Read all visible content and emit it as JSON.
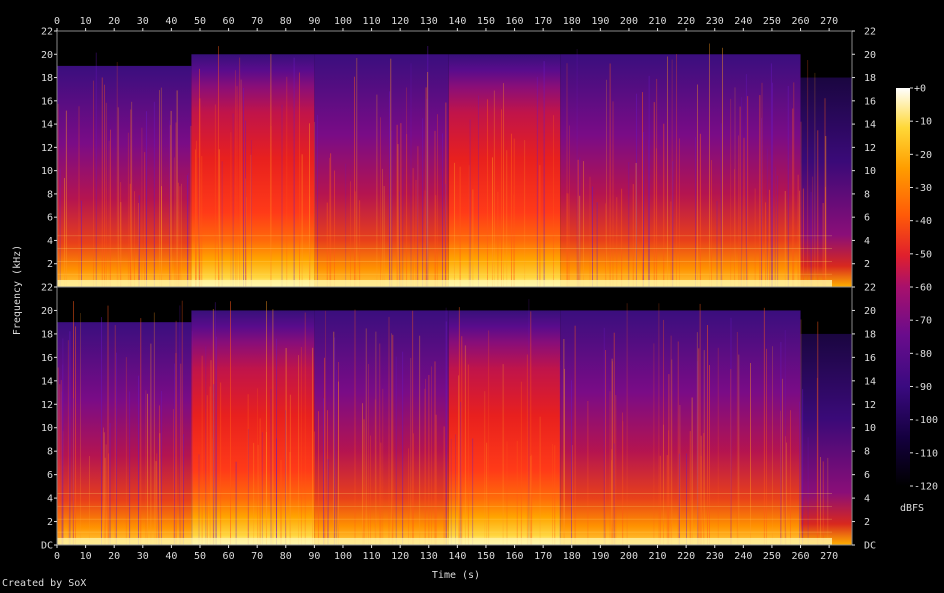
{
  "chart_data": {
    "type": "heatmap",
    "subtype": "spectrogram",
    "channels": 2,
    "xlabel": "Time (s)",
    "ylabel": "Frequency (kHz)",
    "xlim": [
      0,
      278
    ],
    "x_ticks": [
      0,
      10,
      20,
      30,
      40,
      50,
      60,
      70,
      80,
      90,
      100,
      110,
      120,
      130,
      140,
      150,
      160,
      170,
      180,
      190,
      200,
      210,
      220,
      230,
      240,
      250,
      260,
      270
    ],
    "y_ticks_top": [
      "2",
      "4",
      "6",
      "8",
      "10",
      "12",
      "14",
      "16",
      "18",
      "20",
      "22"
    ],
    "y_ticks_bottom": [
      "DC",
      "2",
      "4",
      "6",
      "8",
      "10",
      "12",
      "14",
      "16",
      "18",
      "20",
      "22"
    ],
    "ylim_khz": [
      0,
      22
    ],
    "colorbar": {
      "label": "dBFS",
      "range": [
        -120,
        0
      ],
      "ticks": [
        "+0",
        "-10",
        "-20",
        "-30",
        "-40",
        "-50",
        "-60",
        "-70",
        "-80",
        "-90",
        "-100",
        "-110",
        "-120"
      ]
    },
    "segments_s": [
      {
        "start": 0,
        "end": 47,
        "cutoff_khz": 19
      },
      {
        "start": 47,
        "end": 90,
        "cutoff_khz": 20
      },
      {
        "start": 90,
        "end": 137,
        "cutoff_khz": 20
      },
      {
        "start": 137,
        "end": 176,
        "cutoff_khz": 20
      },
      {
        "start": 176,
        "end": 260,
        "cutoff_khz": 20
      },
      {
        "start": 260,
        "end": 278,
        "cutoff_khz": 18
      }
    ],
    "colors": {
      "background": "#000000",
      "scale": [
        "#000000",
        "#10003a",
        "#2d0a7a",
        "#5b0c8f",
        "#8a0f8a",
        "#c0185a",
        "#e8262a",
        "#ff4a10",
        "#ff8a00",
        "#ffc400",
        "#ffef60",
        "#ffffff"
      ]
    }
  },
  "footer": {
    "credit": "Created by SoX"
  }
}
